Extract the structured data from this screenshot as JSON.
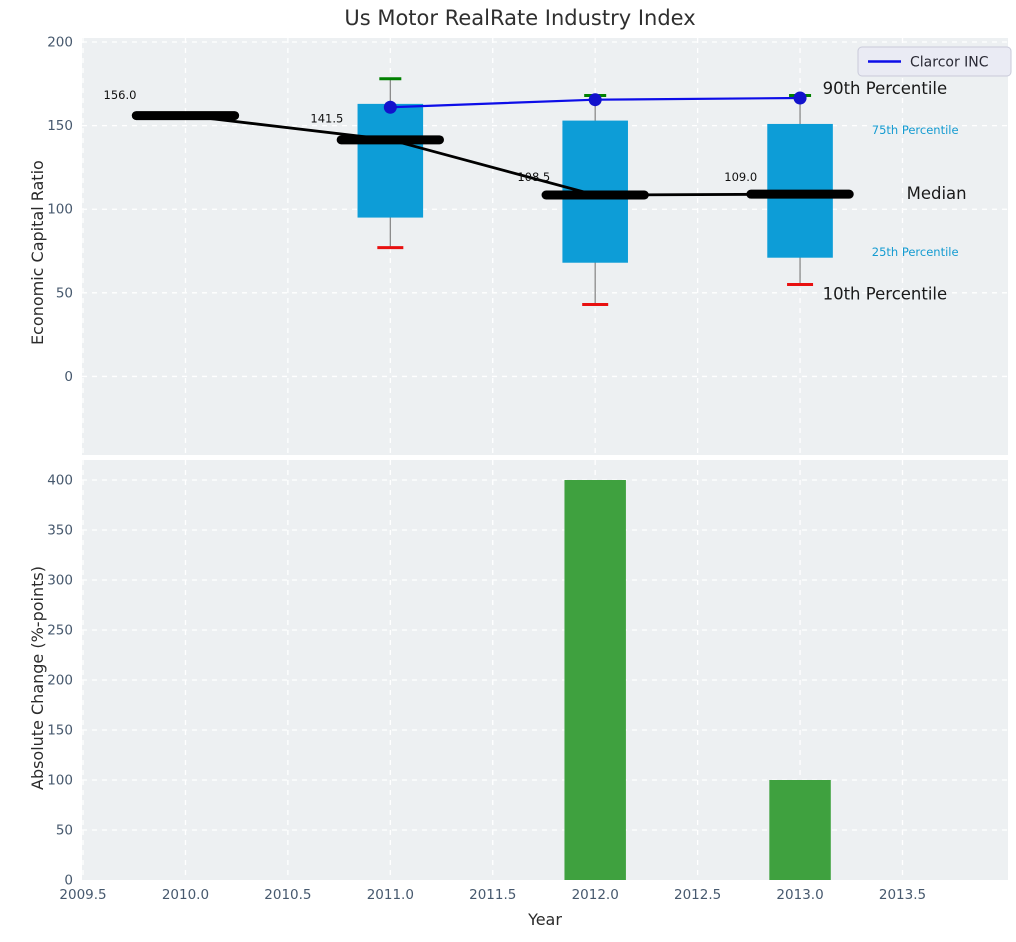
{
  "figure": {
    "title": "Us Motor RealRate Industry Index",
    "top_ylabel": "Economic Capital Ratio",
    "bottom_ylabel": "Absolute Change (%-points)",
    "xlabel": "Year"
  },
  "colors": {
    "axes_bg": "#edf0f2",
    "grid": "#ffffff",
    "box_fill": "#0d9dd7",
    "bar_fill": "#3fa13f",
    "company_line": "#0d0de8",
    "company_marker": "#1212cc",
    "median": "#000000",
    "median_trend": "#000000",
    "whisker": "#8a8a8a",
    "cap_90": "#008000",
    "cap_10": "#e81010",
    "tick_label": "#47596e",
    "annotation_dark": "#1a1a1a",
    "annotation_cyan": "#149bd1",
    "legend_bg": "#eaebf4",
    "legend_border": "#c9cad9",
    "legend_text": "#2a2a35"
  },
  "chart_data": [
    {
      "type": "boxplot+line",
      "title": "Us Motor RealRate Industry Index",
      "ylabel": "Economic Capital Ratio",
      "ylim": [
        -47,
        202.4
      ],
      "xlim": [
        2009.495,
        2014.015
      ],
      "yticks": [
        0,
        50,
        100,
        150,
        200
      ],
      "ytick_labels": [
        "0",
        "50",
        "100",
        "150",
        "200"
      ],
      "grid": true,
      "box_width": 0.32,
      "median_halfwidth": 0.24,
      "boxes": [
        {
          "year": 2010,
          "median": 156.0
        },
        {
          "year": 2011,
          "median": 141.5,
          "q1": 95,
          "q3": 163,
          "p10": 77,
          "p90": 178
        },
        {
          "year": 2012,
          "median": 108.5,
          "q1": 68,
          "q3": 153,
          "p10": 43,
          "p90": 168
        },
        {
          "year": 2013,
          "median": 109.0,
          "q1": 71,
          "q3": 151,
          "p10": 55,
          "p90": 168
        }
      ],
      "median_trend": [
        [
          2010,
          156.0
        ],
        [
          2011,
          141.5
        ],
        [
          2012,
          108.5
        ],
        [
          2013,
          109.0
        ]
      ],
      "value_labels": [
        {
          "x": 2009.6,
          "y": 166,
          "text": "156.0"
        },
        {
          "x": 2010.61,
          "y": 152,
          "text": "141.5"
        },
        {
          "x": 2011.62,
          "y": 117,
          "text": "108.5"
        },
        {
          "x": 2012.63,
          "y": 117,
          "text": "109.0"
        }
      ],
      "series": [
        {
          "name": "Clarcor INC",
          "points": [
            [
              2011,
              161
            ],
            [
              2012,
              165.5
            ],
            [
              2013,
              166.5
            ]
          ]
        }
      ],
      "legend": {
        "label": "Clarcor INC",
        "position": "upper right"
      },
      "annotations": [
        {
          "text": "90th Percentile",
          "x": 2013.11,
          "y": 169,
          "size": "large",
          "color": "dark"
        },
        {
          "text": "75th Percentile",
          "x": 2013.35,
          "y": 145,
          "size": "small",
          "color": "cyan"
        },
        {
          "text": "Median",
          "x": 2013.52,
          "y": 106,
          "size": "large",
          "color": "dark"
        },
        {
          "text": "25th Percentile",
          "x": 2013.35,
          "y": 72,
          "size": "small",
          "color": "cyan"
        },
        {
          "text": "10th Percentile",
          "x": 2013.11,
          "y": 46,
          "size": "large",
          "color": "dark"
        }
      ]
    },
    {
      "type": "bar",
      "ylabel": "Absolute Change (%-points)",
      "xlabel": "Year",
      "ylim": [
        0,
        420
      ],
      "xlim": [
        2009.495,
        2014.015
      ],
      "yticks": [
        0,
        50,
        100,
        150,
        200,
        250,
        300,
        350,
        400
      ],
      "ytick_labels": [
        "0",
        "50",
        "100",
        "150",
        "200",
        "250",
        "300",
        "350",
        "400"
      ],
      "xticks": [
        2009.5,
        2010.0,
        2010.5,
        2011.0,
        2011.5,
        2012.0,
        2012.5,
        2013.0,
        2013.5
      ],
      "xtick_labels": [
        "2009.5",
        "2010.0",
        "2010.5",
        "2011.0",
        "2011.5",
        "2012.0",
        "2012.5",
        "2013.0",
        "2013.5"
      ],
      "grid": true,
      "bar_width": 0.3,
      "bars": [
        {
          "x": 2012,
          "value": 400
        },
        {
          "x": 2013,
          "value": 100
        }
      ]
    }
  ]
}
